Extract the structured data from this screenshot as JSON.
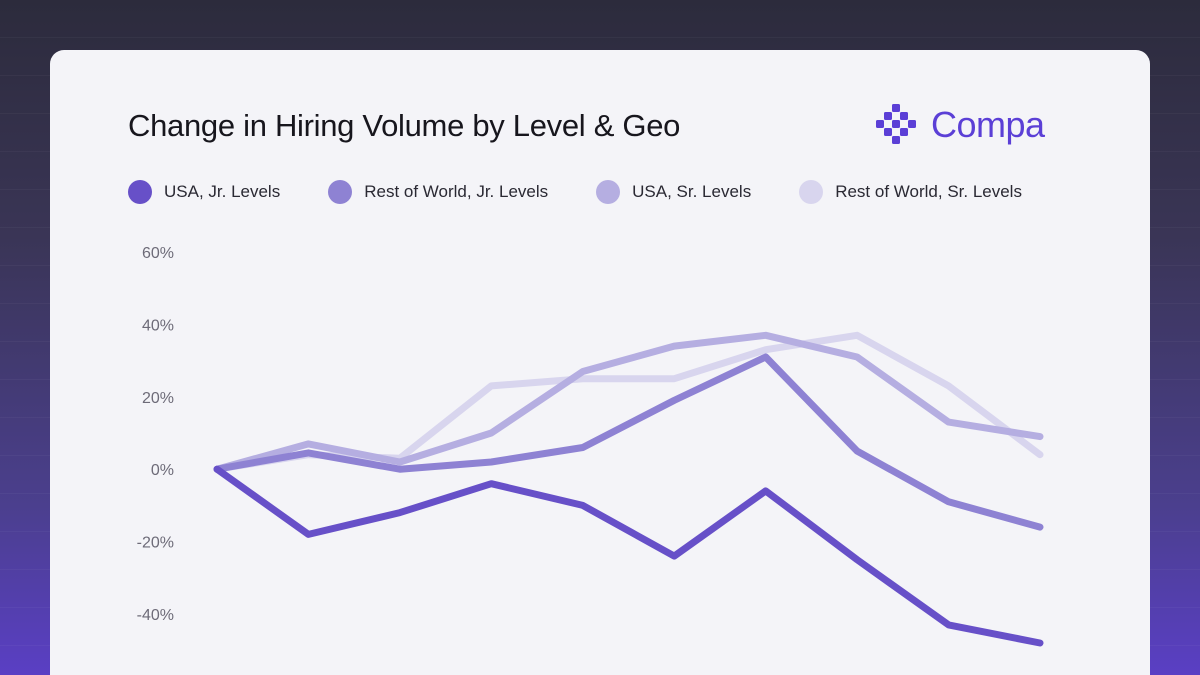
{
  "header": {
    "title": "Change in Hiring Volume by Level & Geo",
    "brand": "Compa",
    "brand_icon": "compa-logo-icon",
    "brand_color": "#5b3fd6"
  },
  "chart_data": {
    "type": "line",
    "title": "Change in Hiring Volume by Level & Geo",
    "xlabel": "",
    "ylabel": "",
    "x": [
      0,
      1,
      2,
      3,
      4,
      5,
      6,
      7,
      8,
      9
    ],
    "ylim": [
      -40,
      60
    ],
    "y_ticks": [
      60,
      40,
      20,
      0,
      -20,
      -40
    ],
    "y_tick_labels": [
      "60%",
      "40%",
      "20%",
      "0%",
      "-20%",
      "-40%"
    ],
    "grid": false,
    "legend_position": "top-left",
    "series": [
      {
        "name": "Rest of World, Sr. Levels",
        "color": "#d8d5ee",
        "values": [
          0,
          4,
          3,
          23,
          25,
          25,
          33,
          37,
          23,
          4
        ]
      },
      {
        "name": "USA, Sr. Levels",
        "color": "#b5aee1",
        "values": [
          0,
          7,
          2,
          10,
          27,
          34,
          37,
          31,
          13,
          9
        ]
      },
      {
        "name": "Rest of World, Jr. Levels",
        "color": "#8e82d3",
        "values": [
          0,
          4.5,
          0,
          2,
          6,
          19,
          31,
          5,
          -9,
          -16
        ]
      },
      {
        "name": "USA, Jr. Levels",
        "color": "#6750c8",
        "values": [
          0,
          -18,
          -12,
          -4,
          -10,
          -24,
          -6,
          -25,
          -43,
          -48
        ]
      }
    ],
    "legend_order": [
      "USA, Jr. Levels",
      "Rest of World, Jr. Levels",
      "USA, Sr. Levels",
      "Rest of World, Sr. Levels"
    ],
    "legend_colors": [
      "#6750c8",
      "#8e82d3",
      "#b5aee1",
      "#d8d5ee"
    ]
  }
}
